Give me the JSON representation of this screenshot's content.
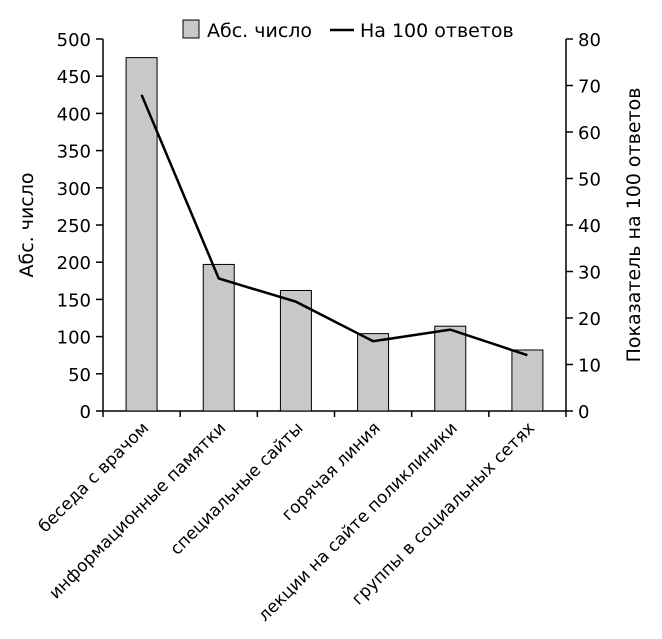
{
  "chart_data": {
    "type": "bar",
    "categories": [
      "беседа с врачом",
      "информационные памятки",
      "специальные сайты",
      "горячая линия",
      "лекции на сайте поликлиники",
      "группы в социальных сетях"
    ],
    "series": [
      {
        "name": "Абс. число",
        "type": "bar",
        "axis": "left",
        "values": [
          475,
          197,
          162,
          104,
          114,
          82
        ]
      },
      {
        "name": "На 100 ответов",
        "type": "line",
        "axis": "right",
        "values": [
          68,
          28.5,
          23.5,
          15,
          17.5,
          12
        ]
      }
    ],
    "ylabel": "Абс. число",
    "y2label": "Показатель на 100 ответов",
    "ylim": [
      0,
      500
    ],
    "y2lim": [
      0,
      80
    ],
    "yticks": [
      0,
      50,
      100,
      150,
      200,
      250,
      300,
      350,
      400,
      450,
      500
    ],
    "y2ticks": [
      0,
      10,
      20,
      30,
      40,
      50,
      60,
      70,
      80
    ],
    "legend": {
      "placement": "top-center"
    },
    "grid": false,
    "colors": {
      "bar_fill": "#c8c8c8",
      "line": "#000000"
    }
  }
}
